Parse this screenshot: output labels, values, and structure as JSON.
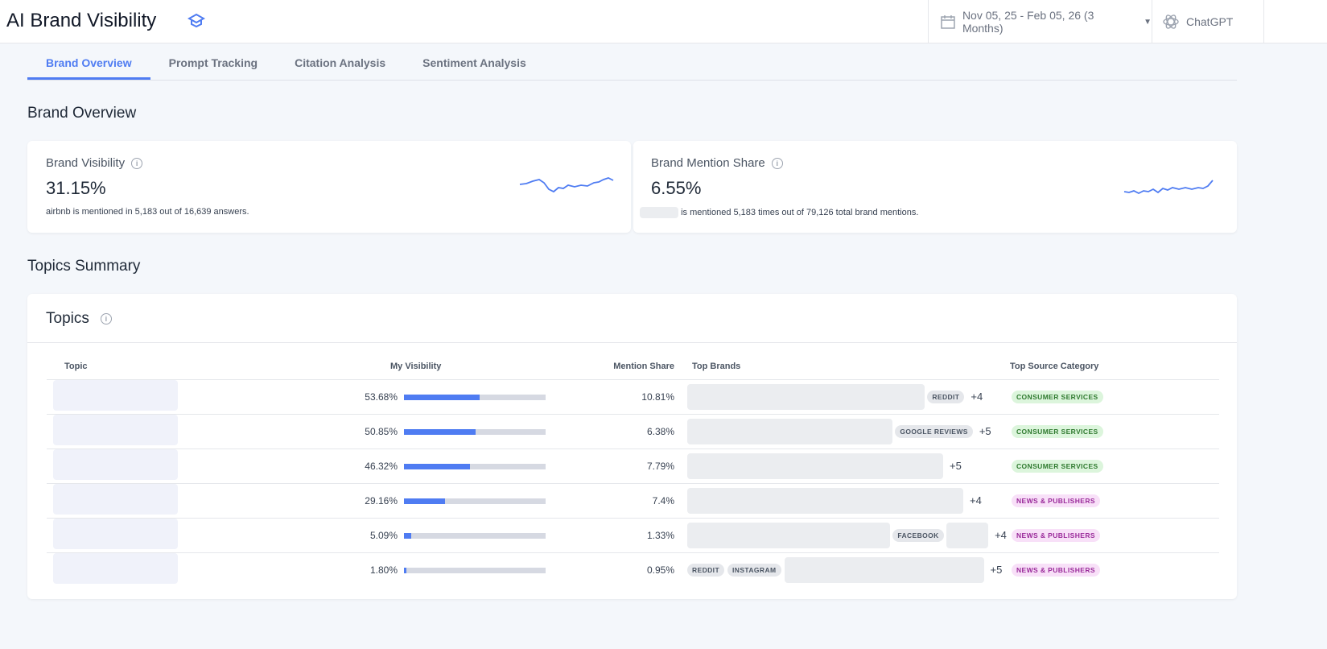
{
  "header": {
    "title": "AI Brand Visibility",
    "date_range": "Nov 05, 25 - Feb 05, 26 (3 Months)",
    "model": "ChatGPT"
  },
  "tabs": [
    "Brand Overview",
    "Prompt Tracking",
    "Citation Analysis",
    "Sentiment Analysis"
  ],
  "overview": {
    "heading": "Brand Overview",
    "visibility": {
      "label": "Brand Visibility",
      "value": "31.15%",
      "sub": "airbnb is mentioned in 5,183 out of 16,639 answers."
    },
    "mention_share": {
      "label": "Brand Mention Share",
      "value": "6.55%",
      "sub": "is mentioned 5,183 times out of 79,126 total brand mentions."
    }
  },
  "topics": {
    "section_heading": "Topics Summary",
    "card_title": "Topics",
    "columns": [
      "Topic",
      "My Visibility",
      "Mention Share",
      "Top Brands",
      "Top Source Category"
    ],
    "rows": [
      {
        "visibility": "53.68%",
        "visibility_pct": 53.68,
        "share": "10.81%",
        "chips": [
          "REDDIT"
        ],
        "more": "+4",
        "category": "CONSUMER SERVICES",
        "cat": "green"
      },
      {
        "visibility": "50.85%",
        "visibility_pct": 50.85,
        "share": "6.38%",
        "chips": [
          "GOOGLE REVIEWS"
        ],
        "more": "+5",
        "category": "CONSUMER SERVICES",
        "cat": "green"
      },
      {
        "visibility": "46.32%",
        "visibility_pct": 46.32,
        "share": "7.79%",
        "chips": [],
        "more": "+5",
        "category": "CONSUMER SERVICES",
        "cat": "green"
      },
      {
        "visibility": "29.16%",
        "visibility_pct": 29.16,
        "share": "7.4%",
        "chips": [],
        "more": "+4",
        "category": "NEWS & PUBLISHERS",
        "cat": "pink"
      },
      {
        "visibility": "5.09%",
        "visibility_pct": 5.09,
        "share": "1.33%",
        "chips": [
          "FACEBOOK"
        ],
        "more": "+4",
        "category": "NEWS & PUBLISHERS",
        "cat": "pink"
      },
      {
        "visibility": "1.80%",
        "visibility_pct": 1.8,
        "share": "0.95%",
        "chips": [
          "REDDIT",
          "INSTAGRAM"
        ],
        "more": "+5",
        "category": "NEWS & PUBLISHERS",
        "cat": "pink"
      }
    ]
  },
  "colors": {
    "accent": "#4f7cf2"
  }
}
